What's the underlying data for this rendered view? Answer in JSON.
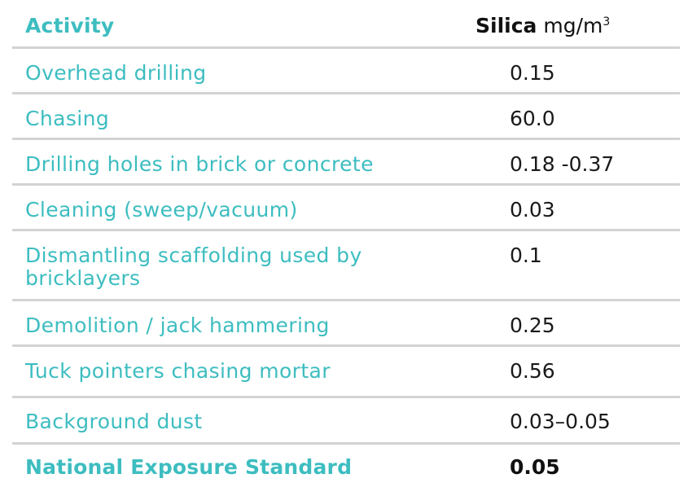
{
  "header": {
    "activity_label": "Activity",
    "value_label_bold": "Silica",
    "value_unit": "mg/m",
    "value_unit_exponent": "3"
  },
  "rows": [
    {
      "activity": "Overhead drilling",
      "value": "0.15"
    },
    {
      "activity": "Chasing",
      "value": "60.0"
    },
    {
      "activity": "Drilling holes in brick or concrete",
      "value": "0.18 -0.37"
    },
    {
      "activity": "Cleaning (sweep/vacuum)",
      "value": "0.03"
    },
    {
      "activity_line1": "Dismantling scaffolding used by",
      "activity_line2": "bricklayers",
      "value": "0.1"
    },
    {
      "activity": "Demolition / jack hammering",
      "value": "0.25"
    },
    {
      "activity": "Tuck pointers chasing mortar",
      "value": "0.56"
    },
    {
      "activity": "Background dust",
      "value": "0.03–0.05"
    }
  ],
  "footer": {
    "activity": "National Exposure Standard",
    "value": "0.05"
  },
  "colors": {
    "activity_text": "#3dbdc0",
    "value_text": "#1a1a1a",
    "divider": "#d3d3d3"
  }
}
